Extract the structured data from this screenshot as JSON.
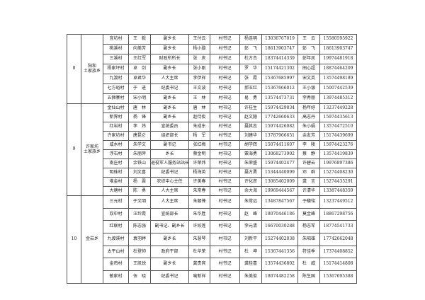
{
  "sections": [
    {
      "no": "8",
      "township": "阳和\n土家族乡",
      "rows": [
        [
          "宜坊村",
          "王　毅",
          "副乡长",
          "王付云",
          "村书记",
          "杨连明",
          "13036767019",
          "王　云",
          "15580595922"
        ],
        [
          "桃溪村",
          "向美芳",
          "副乡长",
          "杨小璇",
          "村书记",
          "彭　飞",
          "18613903747",
          "彭　飞",
          "18613903747"
        ],
        [
          "三溪村",
          "王红军",
          "财政所所长",
          "张　庆",
          "村书记",
          "杜方杰",
          "18374414339",
          "彭年凤",
          "19974481918"
        ],
        [
          "杨家坪村",
          "卓　剑",
          "副乡长",
          "张小刚",
          "村书记",
          "罗　华",
          "15174421302",
          "田心超",
          "18874464209"
        ],
        [
          "九渡村",
          "卓君华",
          "人大主席",
          "李伊祥",
          "村书记",
          "张　霞",
          "15367685997",
          "宋文英",
          "13574498189"
        ],
        [
          "七方峪村",
          "于　进",
          "纪委书记",
          "王文波",
          "村书记",
          "郝玉红",
          "15367666012",
          "王小银",
          "15007442539"
        ],
        [
          "五狮寨村",
          "宋小明",
          "副乡长",
          "王　林",
          "村书记",
          "易　勇",
          "13574473731",
          "李秀丽",
          "13974485312"
        ]
      ]
    },
    {
      "no": "9",
      "township": "许家坊\n土家族乡",
      "rows": [
        [
          "金仙山村",
          "唐　林",
          "副乡长",
          "唐　林",
          "村书记",
          "许桂生",
          "15974429834",
          "杨年妤",
          "13237449228"
        ],
        [
          "新界村",
          "杨　锋",
          "副乡长",
          "赵侍俊",
          "村书记",
          "赵文臆",
          "17742660633",
          "高志丹",
          "15974435613"
        ],
        [
          "红岩村",
          "李　炜",
          "宣统委员",
          "朱成东",
          "村书记",
          "聂其志",
          "15974426082",
          "朱小娟",
          "13574472510"
        ],
        [
          "许家坊村",
          "唐昆仑",
          "组织部长",
          "杨　军",
          "村书记",
          "刘建华",
          "13787966651",
          "余友芳",
          "15174439699"
        ],
        [
          "咸水村",
          "朱学文",
          "副书记",
          "张红梅",
          "村书记",
          "胡学辉",
          "15074411607",
          "李　陵",
          "15974423276"
        ],
        [
          "浮石村",
          "朱丽萍",
          "乡长",
          "蔡金明",
          "村书记",
          "粟海勇",
          "13068273902",
          "蔡　静",
          "13574419839"
        ],
        [
          "南庄村",
          "余铁山",
          "退役军人服务站站长",
          "许荣炜",
          "村书记",
          "朱荣盛",
          "15974402477",
          "许碧云",
          "19976897386"
        ],
        [
          "明珠村",
          "刘文喜",
          "纪委书记",
          "杨海英",
          "村书记",
          "聂方勇",
          "15344440099",
          "邓　群",
          "15274408230"
        ],
        [
          "堆金村",
          "杨　震",
          "农综中心主任",
          "许美春",
          "村书记",
          "许化彦",
          "13085402009",
          "龚　言",
          "15274435291"
        ],
        [
          "大塘村",
          "陈　勇",
          "人大主席",
          "朱常春",
          "村书记",
          "余大海",
          "19969444567",
          "许清华",
          "13387448359"
        ]
      ]
    },
    {
      "no": "10",
      "township": "金岩乡",
      "rows": [
        [
          "三元村",
          "于文明",
          "人大主席",
          "朱朝锋",
          "村书记",
          "朱常远",
          "13487847567",
          "于馥铭",
          "13237449512"
        ],
        [
          "双中村",
          "汪玲霞",
          "宣统部长",
          "朱华胜",
          "村书记",
          "赵　峰",
          "18070446186",
          "莫金峰",
          "18867298756"
        ],
        [
          "红联村",
          "陈志强",
          "副书记、副乡长",
          "许姣莲",
          "村书记",
          "李元清",
          "16670030288",
          "杨志军",
          "18774541733"
        ],
        [
          "九渡溪村",
          "袁羽婷",
          "副乡长",
          "朱慧琴",
          "村书记",
          "刘新平",
          "15274402038",
          "朱昭雄",
          "17742662048"
        ],
        [
          "太平山村",
          "杜登帅",
          "政府干部",
          "杜华荣",
          "村书记",
          "杜　坤",
          "15367441356",
          "符佳季",
          "17374408852"
        ],
        [
          "金鸡村",
          "王凯锐",
          "副乡长",
          "龚贵宾",
          "村书记",
          "龚桂喜",
          "13574436802",
          "杜　威",
          "15174414808"
        ],
        [
          "敏家村",
          "伍　晓",
          "纪委书记",
          "喻新祥",
          "村书记",
          "朱美俊",
          "18074482258",
          "陈生国",
          "15367695388"
        ]
      ]
    }
  ]
}
